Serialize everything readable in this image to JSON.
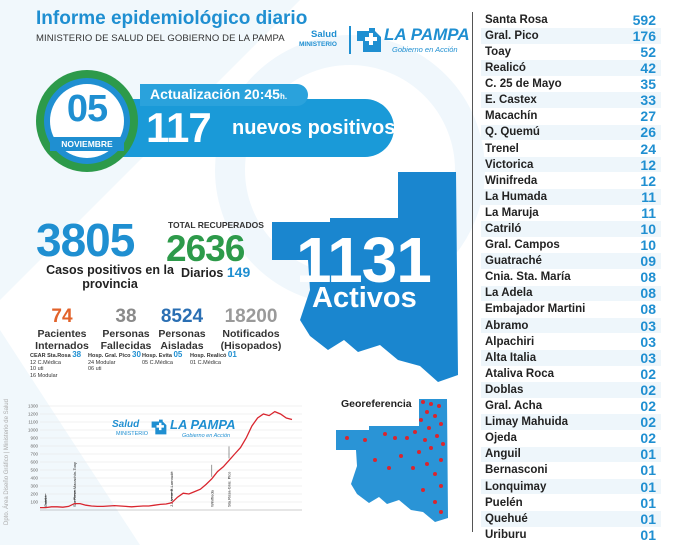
{
  "header": {
    "title": "Informe epidemiológico diario",
    "subtitle": "MINISTERIO DE SALUD DEL GOBIERNO DE LA PAMPA",
    "logo_salud": "Salud",
    "logo_ministerio": "MINISTERIO",
    "logo_lapampa": "LA PAMPA",
    "logo_gobierno": "Gobierno en Acción"
  },
  "date": {
    "day": "05",
    "month": "NOVIEMBRE"
  },
  "update": {
    "label": "Actualización 20:45",
    "suffix": "h."
  },
  "new_positives": {
    "value": "117",
    "label": "nuevos positivos"
  },
  "cases": {
    "total": "3805",
    "label": "Casos positivos en la provincia"
  },
  "recovered": {
    "label": "TOTAL RECUPERADOS",
    "value": "2636",
    "daily_label": "Diarios",
    "daily_value": "149"
  },
  "stats": [
    {
      "value": "74",
      "label": "Pacientes Internados",
      "color": "#e2622a"
    },
    {
      "value": "38",
      "label": "Personas Fallecidas",
      "color": "#8a8a8a"
    },
    {
      "value": "8524",
      "label": "Personas Aisladas",
      "color": "#2a6fb3"
    },
    {
      "value": "18200",
      "label": "Notificados (Hisopados)",
      "color": "#9a9a9a"
    }
  ],
  "hospitals": [
    {
      "name": "CEAR Sta.Rosa",
      "value": "38",
      "lines": [
        "12 C.Médica",
        "10 uti",
        "16 Modular"
      ]
    },
    {
      "name": "Hosp. Gral. Pico",
      "value": "30",
      "lines": [
        "24 Modular",
        "06 uti"
      ]
    },
    {
      "name": "Hosp. Evita",
      "value": "05",
      "lines": [
        "05 C.Médica"
      ]
    },
    {
      "name": "Hosp. Realicó",
      "value": "01",
      "lines": [
        "01 C.Médica"
      ]
    }
  ],
  "active": {
    "value": "1131",
    "label": "Activos"
  },
  "geo_label": "Georeferencia",
  "chart_logo": {
    "salud": "Salud",
    "ministerio": "MINISTERIO",
    "lapampa": "LA PAMPA",
    "gobierno": "Gobierno en Acción"
  },
  "credit": "Dpto. Área Diseño Gráfico | Ministerio de Salud",
  "chart_data": {
    "type": "line",
    "y_ticks": [
      "1300",
      "1200",
      "1100",
      "1000",
      "900",
      "800",
      "700",
      "600",
      "500",
      "400",
      "300",
      "200",
      "100"
    ],
    "ylim": [
      0,
      1300
    ],
    "series": [
      {
        "values": [
          30,
          30,
          40,
          40,
          35,
          45,
          80,
          80,
          60,
          50,
          45,
          45,
          50,
          55,
          50,
          45,
          40,
          45,
          50,
          50,
          60,
          70,
          75,
          90,
          160,
          210,
          200,
          230,
          260,
          320,
          390,
          480,
          540,
          620,
          700,
          780,
          900,
          1050,
          1150,
          1200,
          1180,
          1230,
          1200,
          1150,
          1131
        ]
      }
    ],
    "annotations": [
      {
        "label": "Catriló",
        "at": 1
      },
      {
        "label": "Sta.Rosa-Macachín-Toay",
        "at": 6
      },
      {
        "label": "J.Alvear-B.Larroudé",
        "at": 23
      },
      {
        "label": "Winifreda",
        "at": 30
      },
      {
        "label": "Sta.Rosa-Gral. Pico",
        "at": 33
      }
    ]
  },
  "cities": [
    {
      "name": "Santa Rosa",
      "value": "592"
    },
    {
      "name": "Gral. Pico",
      "value": "176"
    },
    {
      "name": "Toay",
      "value": "52"
    },
    {
      "name": "Realicó",
      "value": "42"
    },
    {
      "name": "C. 25 de Mayo",
      "value": "35"
    },
    {
      "name": "E. Castex",
      "value": "33"
    },
    {
      "name": "Macachín",
      "value": "27"
    },
    {
      "name": "Q. Quemú",
      "value": "26"
    },
    {
      "name": "Trenel",
      "value": "24"
    },
    {
      "name": "Victorica",
      "value": "12"
    },
    {
      "name": "Winifreda",
      "value": "12"
    },
    {
      "name": "La Humada",
      "value": "11"
    },
    {
      "name": "La Maruja",
      "value": "11"
    },
    {
      "name": "Catriló",
      "value": "10"
    },
    {
      "name": "Gral. Campos",
      "value": "10"
    },
    {
      "name": "Guatraché",
      "value": "09"
    },
    {
      "name": "Cnia. Sta. María",
      "value": "08"
    },
    {
      "name": "La Adela",
      "value": "08"
    },
    {
      "name": "Embajador Martini",
      "value": "08"
    },
    {
      "name": "Abramo",
      "value": "03"
    },
    {
      "name": "Alpachiri",
      "value": "03"
    },
    {
      "name": "Alta Italia",
      "value": "03"
    },
    {
      "name": "Ataliva Roca",
      "value": "02"
    },
    {
      "name": "Doblas",
      "value": "02"
    },
    {
      "name": "Gral. Acha",
      "value": "02"
    },
    {
      "name": "Limay Mahuida",
      "value": "02"
    },
    {
      "name": "Ojeda",
      "value": "02"
    },
    {
      "name": "Anguil",
      "value": "01"
    },
    {
      "name": "Bernasconi",
      "value": "01"
    },
    {
      "name": "Lonquimay",
      "value": "01"
    },
    {
      "name": "Puelén",
      "value": "01"
    },
    {
      "name": "Quehué",
      "value": "01"
    },
    {
      "name": "Uriburu",
      "value": "01"
    }
  ],
  "colors": {
    "primary": "#1f8fd1",
    "green": "#2d9a4a",
    "chart_line": "#d9262f",
    "map": "#1a86cf"
  }
}
